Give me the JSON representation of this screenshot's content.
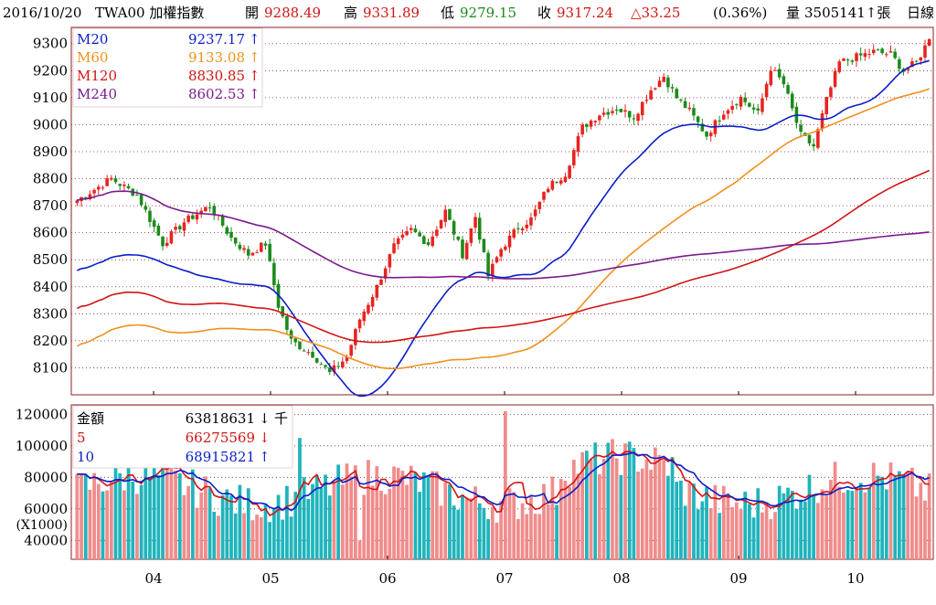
{
  "header": {
    "date": "2016/10/20",
    "symbol": "TWA00 加權指數",
    "open_label": "開",
    "open": "9288.49",
    "high_label": "高",
    "high": "9331.89",
    "low_label": "低",
    "low": "9279.15",
    "close_label": "收",
    "close": "9317.24",
    "change": "△33.25",
    "change_pct": "(0.36%)",
    "volume_label": "量",
    "volume": "3505141↑張",
    "period": "日線"
  },
  "colors": {
    "up": "#e8231f",
    "down": "#1a8a1a",
    "ma20": "#0a1ec8",
    "ma60": "#f0901e",
    "ma120": "#d21414",
    "ma240": "#7a1a8c",
    "vol_up": "#f08c8c",
    "vol_down": "#1fb4bc",
    "grid": "#7b2c2c",
    "frame": "#8b2020"
  },
  "chart_data": [
    {
      "type": "candlestick",
      "ylim": [
        8000,
        9360
      ],
      "yticks": [
        8100,
        8200,
        8300,
        8400,
        8500,
        8600,
        8700,
        8800,
        8900,
        9000,
        9100,
        9200,
        9300
      ],
      "xticks": [
        "04",
        "05",
        "06",
        "07",
        "08",
        "09",
        "10"
      ],
      "legend": [
        {
          "name": "M20",
          "value": "9237.17",
          "arrow": "↑",
          "color": "#0a1ec8"
        },
        {
          "name": "M60",
          "value": "9133.08",
          "arrow": "↑",
          "color": "#f0901e"
        },
        {
          "name": "M120",
          "value": "8830.85",
          "arrow": "↑",
          "color": "#d21414"
        },
        {
          "name": "M240",
          "value": "8602.53",
          "arrow": "↑",
          "color": "#7a1a8c"
        }
      ],
      "anchors": [
        [
          0,
          8720
        ],
        [
          8,
          8800
        ],
        [
          14,
          8740
        ],
        [
          20,
          8560
        ],
        [
          25,
          8640
        ],
        [
          31,
          8700
        ],
        [
          36,
          8580
        ],
        [
          40,
          8520
        ],
        [
          44,
          8560
        ],
        [
          47,
          8330
        ],
        [
          50,
          8200
        ],
        [
          55,
          8150
        ],
        [
          59,
          8080
        ],
        [
          63,
          8140
        ],
        [
          66,
          8280
        ],
        [
          70,
          8400
        ],
        [
          74,
          8550
        ],
        [
          78,
          8610
        ],
        [
          82,
          8560
        ],
        [
          86,
          8680
        ],
        [
          90,
          8520
        ],
        [
          93,
          8660
        ],
        [
          96,
          8440
        ],
        [
          99,
          8540
        ],
        [
          103,
          8620
        ],
        [
          106,
          8650
        ],
        [
          110,
          8770
        ],
        [
          114,
          8820
        ],
        [
          118,
          8990
        ],
        [
          122,
          9040
        ],
        [
          126,
          9060
        ],
        [
          130,
          9030
        ],
        [
          134,
          9130
        ],
        [
          137,
          9180
        ],
        [
          140,
          9100
        ],
        [
          143,
          9050
        ],
        [
          147,
          8960
        ],
        [
          151,
          9050
        ],
        [
          155,
          9100
        ],
        [
          159,
          9040
        ],
        [
          162,
          9210
        ],
        [
          165,
          9150
        ],
        [
          169,
          8960
        ],
        [
          172,
          8920
        ],
        [
          175,
          9090
        ],
        [
          178,
          9230
        ],
        [
          182,
          9250
        ],
        [
          186,
          9270
        ],
        [
          190,
          9260
        ],
        [
          193,
          9200
        ],
        [
          196,
          9230
        ],
        [
          199,
          9317
        ]
      ],
      "series": [
        {
          "name": "M20",
          "start": 8460,
          "end": 9237.17
        },
        {
          "name": "M60",
          "start": 8180,
          "end": 9133.08
        },
        {
          "name": "M120",
          "start": 8320,
          "end": 8830.85
        },
        {
          "name": "M240",
          "start": 8720,
          "end": 8602.53
        }
      ]
    },
    {
      "type": "bar",
      "ylim": [
        28000,
        126000
      ],
      "yticks": [
        40000,
        60000,
        80000,
        100000,
        120000
      ],
      "yticks_labels": [
        "40000",
        "60000",
        "80000",
        "100000",
        "120000"
      ],
      "yunit_label": "(X1000)",
      "legend": [
        {
          "name": "金額",
          "value": "63818631",
          "arrow": "↓",
          "suffix": "千",
          "color": "#000000"
        },
        {
          "name": "5",
          "value": "66275569",
          "arrow": "↓",
          "suffix": "",
          "color": "#d21414"
        },
        {
          "name": "10",
          "value": "68915821",
          "arrow": "↑",
          "suffix": "",
          "color": "#0a1ec8"
        }
      ]
    }
  ]
}
